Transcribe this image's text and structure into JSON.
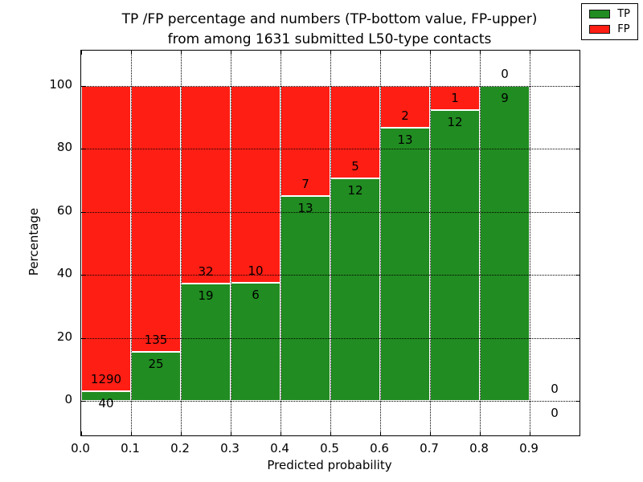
{
  "chart_data": {
    "type": "bar",
    "stacked": true,
    "normalized_to_percent": true,
    "title_lines": [
      "TP /FP percentage and numbers (TP-bottom value, FP-upper)",
      "from among 1631 submitted L50-type contacts"
    ],
    "xlabel": "Predicted probability",
    "ylabel": "Percentage",
    "x_tick_labels": [
      "0.0",
      "0.1",
      "0.2",
      "0.3",
      "0.4",
      "0.5",
      "0.6",
      "0.7",
      "0.8",
      "0.9"
    ],
    "y_ticks": [
      0,
      20,
      40,
      60,
      80,
      100
    ],
    "y_lim_percent": [
      -11,
      111
    ],
    "grid": "dotted",
    "series": [
      {
        "name": "TP",
        "color": "#218c21",
        "values": [
          40,
          25,
          19,
          6,
          13,
          12,
          13,
          12,
          9,
          0
        ]
      },
      {
        "name": "FP",
        "color": "#ff1e14",
        "values": [
          1290,
          135,
          32,
          10,
          7,
          5,
          2,
          1,
          0,
          0
        ]
      }
    ],
    "legend": {
      "position": "upper right",
      "entries": [
        "TP",
        "FP"
      ]
    }
  },
  "colors": {
    "tp": "#218c21",
    "fp": "#ff1e14",
    "background": "#ffffff",
    "axis": "#000000"
  }
}
